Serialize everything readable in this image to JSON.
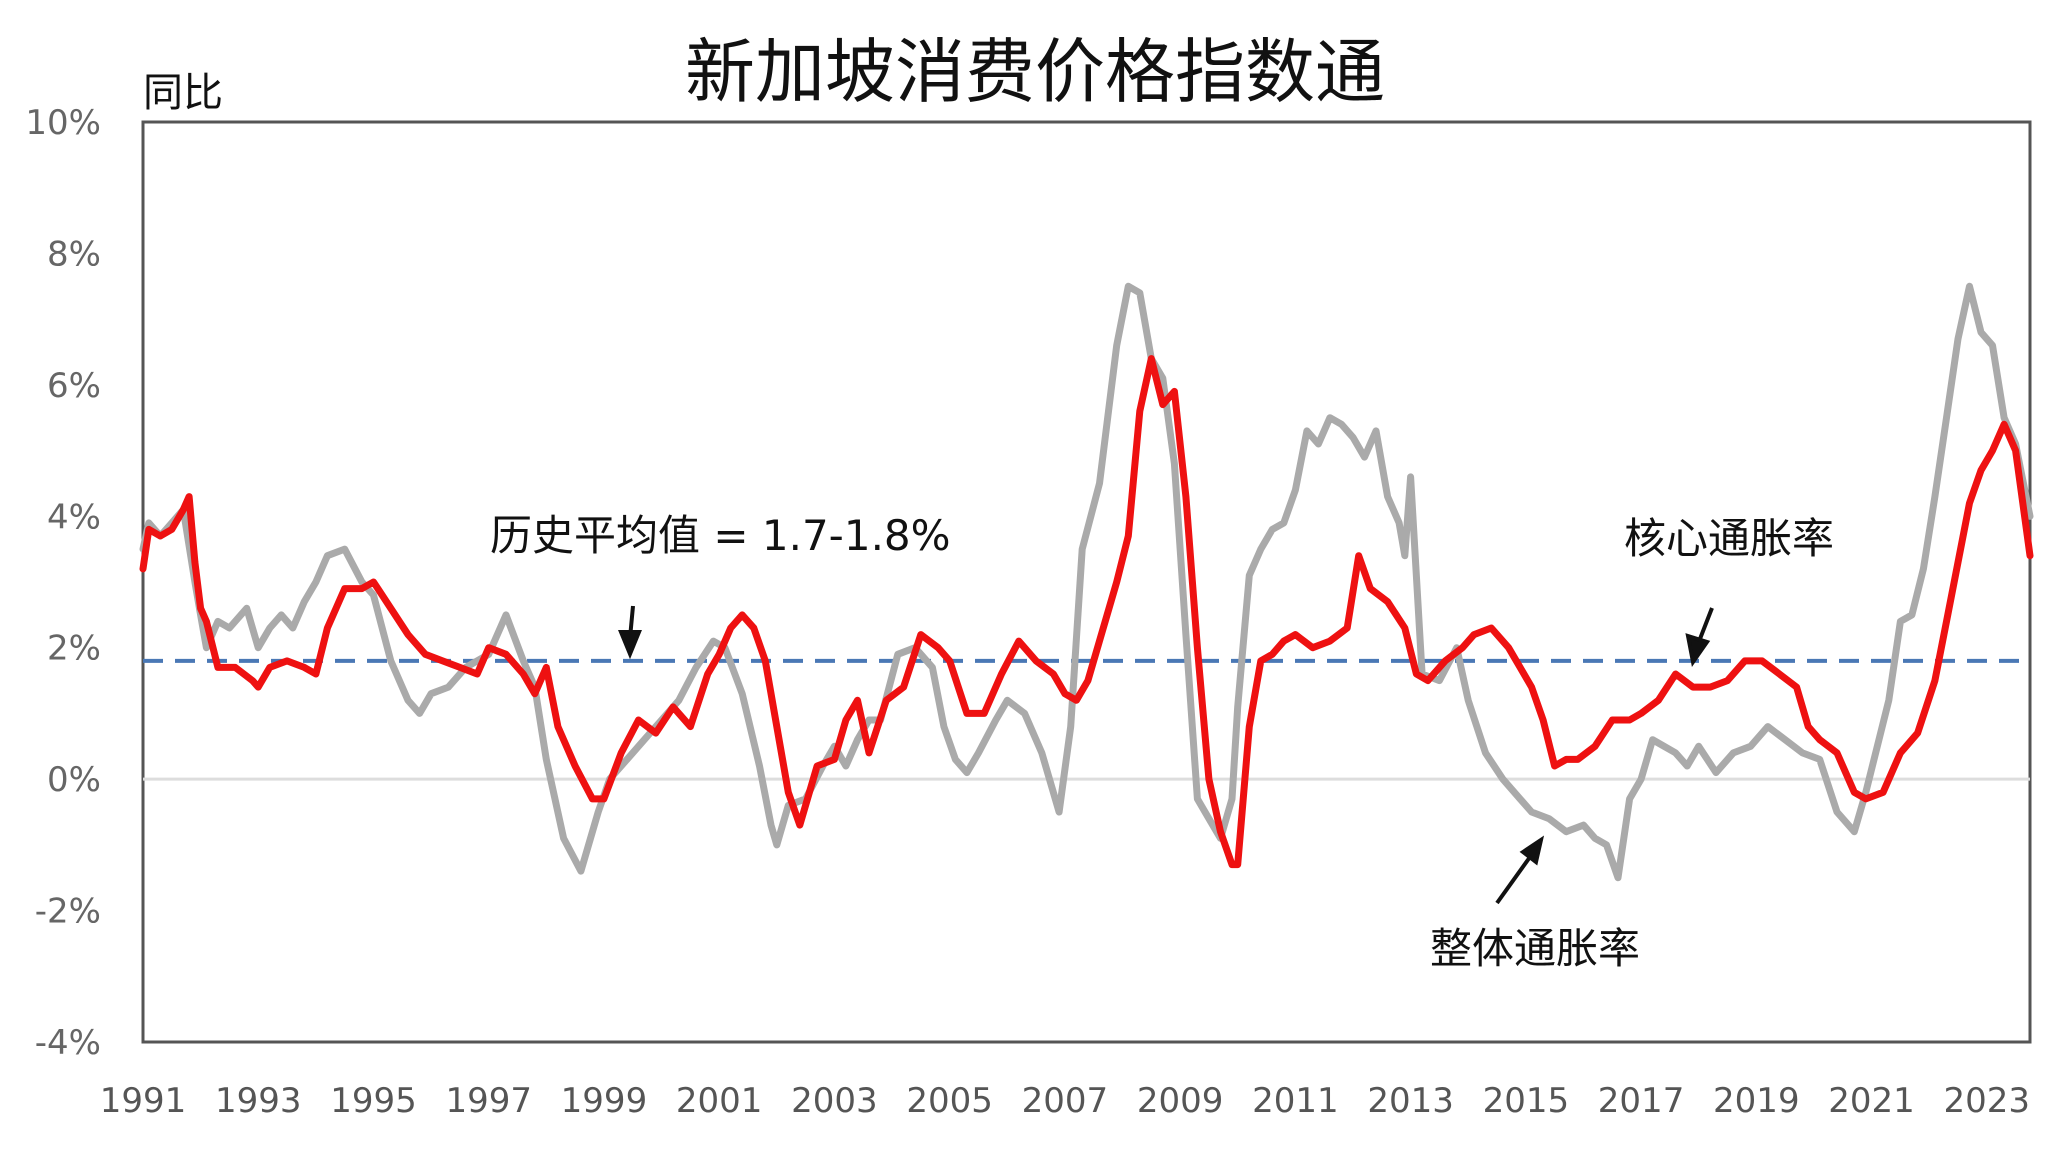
{
  "chart_data": {
    "type": "line",
    "title": "新加坡消费价格指数通",
    "ylabel": "同比",
    "ylim": [
      -4,
      10
    ],
    "xlim": [
      1991,
      2023.75
    ],
    "y_ticks": [
      "10%",
      "8%",
      "6%",
      "4%",
      "2%",
      "0%",
      "-2%",
      "-4%"
    ],
    "x_ticks": [
      "1991",
      "1993",
      "1995",
      "1997",
      "1999",
      "2001",
      "2003",
      "2005",
      "2007",
      "2009",
      "2011",
      "2013",
      "2015",
      "2017",
      "2019",
      "2021",
      "2023"
    ],
    "grid": false,
    "colors": {
      "headline": "#aaaaaa",
      "core": "#ee1111",
      "average": "#4a78b5",
      "zero": "#dddddd"
    },
    "average_line": {
      "value": 1.8,
      "label": "历史平均值 = 1.7-1.8%"
    },
    "series": [
      {
        "name": "整体通胀率",
        "x": [
          1991.0,
          1991.1,
          1991.3,
          1991.5,
          1991.7,
          1991.9,
          1992.0,
          1992.1,
          1992.3,
          1992.5,
          1992.8,
          1993.0,
          1993.2,
          1993.4,
          1993.6,
          1993.8,
          1994.0,
          1994.2,
          1994.5,
          1994.8,
          1995.0,
          1995.3,
          1995.6,
          1995.8,
          1996.0,
          1996.3,
          1996.6,
          1997.0,
          1997.3,
          1997.6,
          1997.8,
          1998.0,
          1998.3,
          1998.6,
          1998.9,
          1999.1,
          1999.4,
          1999.7,
          2000.0,
          2000.3,
          2000.6,
          2000.9,
          2001.1,
          2001.4,
          2001.7,
          2001.9,
          2002.0,
          2002.2,
          2002.5,
          2002.8,
          2003.0,
          2003.2,
          2003.4,
          2003.6,
          2003.8,
          2004.1,
          2004.4,
          2004.7,
          2004.9,
          2005.1,
          2005.3,
          2005.5,
          2005.8,
          2006.0,
          2006.3,
          2006.6,
          2006.9,
          2007.1,
          2007.3,
          2007.6,
          2007.9,
          2008.1,
          2008.3,
          2008.5,
          2008.7,
          2008.9,
          2009.1,
          2009.3,
          2009.5,
          2009.7,
          2009.9,
          2010.0,
          2010.2,
          2010.4,
          2010.6,
          2010.8,
          2011.0,
          2011.2,
          2011.4,
          2011.6,
          2011.8,
          2012.0,
          2012.2,
          2012.4,
          2012.6,
          2012.8,
          2012.9,
          2013.0,
          2013.2,
          2013.5,
          2013.8,
          2014.0,
          2014.3,
          2014.6,
          2014.9,
          2015.1,
          2015.4,
          2015.7,
          2016.0,
          2016.2,
          2016.4,
          2016.6,
          2016.8,
          2017.0,
          2017.2,
          2017.4,
          2017.6,
          2017.8,
          2018.0,
          2018.3,
          2018.6,
          2018.9,
          2019.2,
          2019.5,
          2019.8,
          2020.1,
          2020.4,
          2020.7,
          2020.9,
          2021.1,
          2021.3,
          2021.5,
          2021.7,
          2021.9,
          2022.1,
          2022.3,
          2022.5,
          2022.7,
          2022.9,
          2023.1,
          2023.3,
          2023.5,
          2023.75
        ],
        "values": [
          3.5,
          3.9,
          3.7,
          3.9,
          4.1,
          3.0,
          2.5,
          2.0,
          2.4,
          2.3,
          2.6,
          2.0,
          2.3,
          2.5,
          2.3,
          2.7,
          3.0,
          3.4,
          3.5,
          3.0,
          2.8,
          1.8,
          1.2,
          1.0,
          1.3,
          1.4,
          1.7,
          1.9,
          2.5,
          1.8,
          1.4,
          0.3,
          -0.9,
          -1.4,
          -0.5,
          0.0,
          0.3,
          0.6,
          0.9,
          1.2,
          1.7,
          2.1,
          2.0,
          1.3,
          0.2,
          -0.7,
          -1.0,
          -0.4,
          -0.3,
          0.2,
          0.5,
          0.2,
          0.6,
          0.9,
          0.9,
          1.9,
          2.0,
          1.7,
          0.8,
          0.3,
          0.1,
          0.4,
          0.9,
          1.2,
          1.0,
          0.4,
          -0.5,
          0.8,
          3.5,
          4.5,
          6.6,
          7.5,
          7.4,
          6.4,
          6.1,
          4.8,
          2.2,
          -0.3,
          -0.6,
          -0.9,
          -0.3,
          1.1,
          3.1,
          3.5,
          3.8,
          3.9,
          4.4,
          5.3,
          5.1,
          5.5,
          5.4,
          5.2,
          4.9,
          5.3,
          4.3,
          3.9,
          3.4,
          4.6,
          1.6,
          1.5,
          2.0,
          1.2,
          0.4,
          0.0,
          -0.3,
          -0.5,
          -0.6,
          -0.8,
          -0.7,
          -0.9,
          -1.0,
          -1.5,
          -0.3,
          0.0,
          0.6,
          0.5,
          0.4,
          0.2,
          0.5,
          0.1,
          0.4,
          0.5,
          0.8,
          0.6,
          0.4,
          0.3,
          -0.5,
          -0.8,
          -0.2,
          0.5,
          1.2,
          2.4,
          2.5,
          3.2,
          4.3,
          5.5,
          6.7,
          7.5,
          6.8,
          6.6,
          5.5,
          5.1,
          4.0
        ]
      },
      {
        "name": "核心通胀率",
        "x": [
          1991.0,
          1991.1,
          1991.3,
          1991.5,
          1991.7,
          1991.8,
          1991.9,
          1992.0,
          1992.1,
          1992.3,
          1992.6,
          1992.9,
          1993.0,
          1993.2,
          1993.5,
          1993.8,
          1994.0,
          1994.2,
          1994.5,
          1994.8,
          1995.0,
          1995.3,
          1995.6,
          1995.9,
          1996.2,
          1996.5,
          1996.8,
          1997.0,
          1997.3,
          1997.6,
          1997.8,
          1998.0,
          1998.2,
          1998.5,
          1998.8,
          1999.0,
          1999.3,
          1999.6,
          1999.9,
          2000.2,
          2000.5,
          2000.8,
          2001.0,
          2001.2,
          2001.4,
          2001.6,
          2001.8,
          2002.0,
          2002.2,
          2002.4,
          2002.7,
          2003.0,
          2003.2,
          2003.4,
          2003.6,
          2003.9,
          2004.2,
          2004.5,
          2004.8,
          2005.0,
          2005.3,
          2005.6,
          2005.9,
          2006.2,
          2006.5,
          2006.8,
          2007.0,
          2007.2,
          2007.4,
          2007.7,
          2007.9,
          2008.1,
          2008.3,
          2008.5,
          2008.7,
          2008.9,
          2009.1,
          2009.3,
          2009.5,
          2009.7,
          2009.9,
          2010.0,
          2010.2,
          2010.4,
          2010.6,
          2010.8,
          2011.0,
          2011.3,
          2011.6,
          2011.9,
          2012.1,
          2012.3,
          2012.6,
          2012.9,
          2013.1,
          2013.3,
          2013.6,
          2013.9,
          2014.1,
          2014.4,
          2014.7,
          2014.9,
          2015.1,
          2015.3,
          2015.5,
          2015.7,
          2015.9,
          2016.2,
          2016.5,
          2016.8,
          2017.0,
          2017.3,
          2017.6,
          2017.9,
          2018.2,
          2018.5,
          2018.8,
          2019.1,
          2019.4,
          2019.7,
          2019.9,
          2020.1,
          2020.4,
          2020.7,
          2020.9,
          2021.2,
          2021.5,
          2021.8,
          2022.1,
          2022.3,
          2022.5,
          2022.7,
          2022.9,
          2023.1,
          2023.3,
          2023.5,
          2023.75
        ],
        "values": [
          3.2,
          3.8,
          3.7,
          3.8,
          4.1,
          4.3,
          3.3,
          2.6,
          2.4,
          1.7,
          1.7,
          1.5,
          1.4,
          1.7,
          1.8,
          1.7,
          1.6,
          2.3,
          2.9,
          2.9,
          3.0,
          2.6,
          2.2,
          1.9,
          1.8,
          1.7,
          1.6,
          2.0,
          1.9,
          1.6,
          1.3,
          1.7,
          0.8,
          0.2,
          -0.3,
          -0.3,
          0.4,
          0.9,
          0.7,
          1.1,
          0.8,
          1.6,
          1.9,
          2.3,
          2.5,
          2.3,
          1.8,
          0.8,
          -0.2,
          -0.7,
          0.2,
          0.3,
          0.9,
          1.2,
          0.4,
          1.2,
          1.4,
          2.2,
          2.0,
          1.8,
          1.0,
          1.0,
          1.6,
          2.1,
          1.8,
          1.6,
          1.3,
          1.2,
          1.5,
          2.4,
          3.0,
          3.7,
          5.6,
          6.4,
          5.7,
          5.9,
          4.3,
          2.0,
          0.0,
          -0.8,
          -1.3,
          -1.3,
          0.8,
          1.8,
          1.9,
          2.1,
          2.2,
          2.0,
          2.1,
          2.3,
          3.4,
          2.9,
          2.7,
          2.3,
          1.6,
          1.5,
          1.8,
          2.0,
          2.2,
          2.3,
          2.0,
          1.7,
          1.4,
          0.9,
          0.2,
          0.3,
          0.3,
          0.5,
          0.9,
          0.9,
          1.0,
          1.2,
          1.6,
          1.4,
          1.4,
          1.5,
          1.8,
          1.8,
          1.6,
          1.4,
          0.8,
          0.6,
          0.4,
          -0.2,
          -0.3,
          -0.2,
          0.4,
          0.7,
          1.5,
          2.4,
          3.3,
          4.2,
          4.7,
          5.0,
          5.4,
          5.0,
          3.4
        ]
      }
    ],
    "annotations": [
      {
        "text": "历史平均值 = 1.7-1.8%"
      },
      {
        "text": "核心通胀率",
        "series": "核心通胀率"
      },
      {
        "text": "整体通胀率",
        "series": "整体通胀率"
      }
    ]
  }
}
